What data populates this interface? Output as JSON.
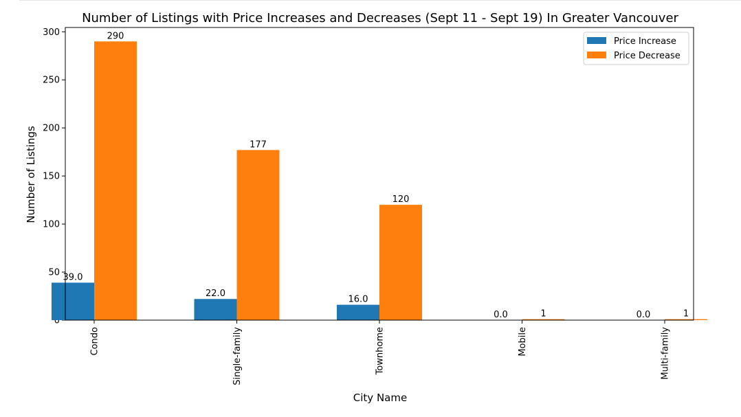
{
  "chart_data": {
    "type": "bar",
    "title": "Number of Listings with Price Increases and Decreases (Sept 11 - Sept 19) In Greater Vancouver",
    "xlabel": "City Name",
    "ylabel": "Number of Listings",
    "categories": [
      "Condo",
      "Single-family",
      "Townhome",
      "Mobile",
      "Multi-family"
    ],
    "series": [
      {
        "name": "Price Increase",
        "color": "#1f77b4",
        "values": [
          39,
          22,
          16,
          0,
          0
        ],
        "value_labels": [
          "39.0",
          "22.0",
          "16.0",
          "0.0",
          "0.0"
        ]
      },
      {
        "name": "Price Decrease",
        "color": "#ff7f0e",
        "values": [
          290,
          177,
          120,
          1,
          1
        ],
        "value_labels": [
          "290",
          "177",
          "120",
          "1",
          "1"
        ]
      }
    ],
    "ylim": [
      0,
      304.5
    ],
    "yticks": [
      0,
      50,
      100,
      150,
      200,
      250,
      300
    ],
    "ytick_labels": [
      "0",
      "50",
      "100",
      "150",
      "200",
      "250",
      "300"
    ],
    "grid": false,
    "legend_position": "top-right"
  }
}
